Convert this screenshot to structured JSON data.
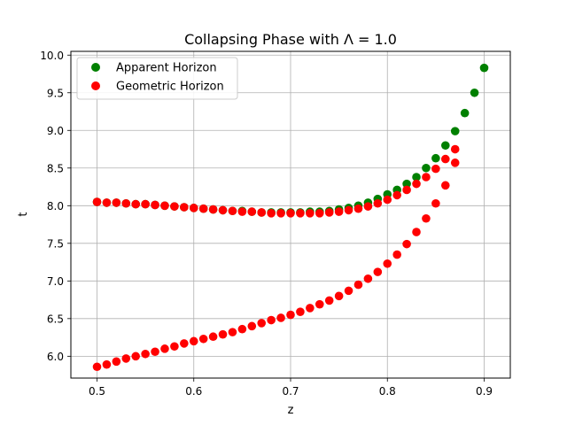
{
  "chart_data": {
    "type": "scatter",
    "title": "Collapsing Phase with Λ = 1.0",
    "xlabel": "z",
    "ylabel": "t",
    "xlim": [
      0.473,
      0.927
    ],
    "ylim": [
      5.71,
      10.05
    ],
    "xticks": [
      0.5,
      0.6,
      0.7,
      0.8,
      0.9
    ],
    "xtick_labels": [
      "0.5",
      "0.6",
      "0.7",
      "0.8",
      "0.9"
    ],
    "yticks": [
      6.0,
      6.5,
      7.0,
      7.5,
      8.0,
      8.5,
      9.0,
      9.5,
      10.0
    ],
    "ytick_labels": [
      "6.0",
      "6.5",
      "7.0",
      "7.5",
      "8.0",
      "8.5",
      "9.0",
      "9.5",
      "10.0"
    ],
    "grid": true,
    "legend_position": "top-left",
    "series": [
      {
        "name": "Apparent Horizon",
        "color": "#008000",
        "x": [
          0.5,
          0.51,
          0.52,
          0.53,
          0.54,
          0.55,
          0.56,
          0.57,
          0.58,
          0.59,
          0.6,
          0.61,
          0.62,
          0.63,
          0.64,
          0.65,
          0.66,
          0.67,
          0.68,
          0.69,
          0.7,
          0.71,
          0.72,
          0.73,
          0.74,
          0.75,
          0.76,
          0.77,
          0.78,
          0.79,
          0.8,
          0.81,
          0.82,
          0.83,
          0.84,
          0.85,
          0.86,
          0.87,
          0.88,
          0.89,
          0.9
        ],
        "y": [
          8.05,
          8.04,
          8.04,
          8.03,
          8.02,
          8.02,
          8.01,
          8.0,
          7.99,
          7.98,
          7.97,
          7.96,
          7.95,
          7.94,
          7.93,
          7.93,
          7.92,
          7.91,
          7.91,
          7.91,
          7.91,
          7.91,
          7.92,
          7.92,
          7.93,
          7.95,
          7.97,
          8.0,
          8.04,
          8.09,
          8.15,
          8.21,
          8.29,
          8.38,
          8.5,
          8.63,
          8.8,
          8.99,
          9.23,
          9.5,
          9.83
        ]
      },
      {
        "name": "Geometric Horizon",
        "color": "#ff0000",
        "x": [
          0.5,
          0.51,
          0.52,
          0.53,
          0.54,
          0.55,
          0.56,
          0.57,
          0.58,
          0.59,
          0.6,
          0.61,
          0.62,
          0.63,
          0.64,
          0.65,
          0.66,
          0.67,
          0.68,
          0.69,
          0.7,
          0.71,
          0.72,
          0.73,
          0.74,
          0.75,
          0.76,
          0.77,
          0.78,
          0.79,
          0.8,
          0.81,
          0.82,
          0.83,
          0.84,
          0.85,
          0.86,
          0.87,
          0.5,
          0.51,
          0.52,
          0.53,
          0.54,
          0.55,
          0.56,
          0.57,
          0.58,
          0.59,
          0.6,
          0.61,
          0.62,
          0.63,
          0.64,
          0.65,
          0.66,
          0.67,
          0.68,
          0.69,
          0.7,
          0.71,
          0.72,
          0.73,
          0.74,
          0.75,
          0.76,
          0.77,
          0.78,
          0.79,
          0.8,
          0.81,
          0.82,
          0.83,
          0.84,
          0.85,
          0.86,
          0.87
        ],
        "y": [
          8.05,
          8.04,
          8.04,
          8.03,
          8.02,
          8.02,
          8.01,
          8.0,
          7.99,
          7.98,
          7.97,
          7.96,
          7.95,
          7.94,
          7.93,
          7.92,
          7.92,
          7.91,
          7.9,
          7.9,
          7.9,
          7.9,
          7.9,
          7.9,
          7.91,
          7.92,
          7.94,
          7.96,
          7.99,
          8.03,
          8.08,
          8.14,
          8.21,
          8.29,
          8.38,
          8.49,
          8.62,
          8.75,
          5.86,
          5.89,
          5.93,
          5.97,
          6.0,
          6.03,
          6.06,
          6.1,
          6.13,
          6.17,
          6.2,
          6.23,
          6.26,
          6.29,
          6.32,
          6.36,
          6.4,
          6.44,
          6.48,
          6.51,
          6.55,
          6.59,
          6.64,
          6.69,
          6.74,
          6.8,
          6.87,
          6.95,
          7.03,
          7.12,
          7.23,
          7.35,
          7.49,
          7.65,
          7.83,
          8.03,
          8.27,
          8.57
        ]
      }
    ]
  }
}
